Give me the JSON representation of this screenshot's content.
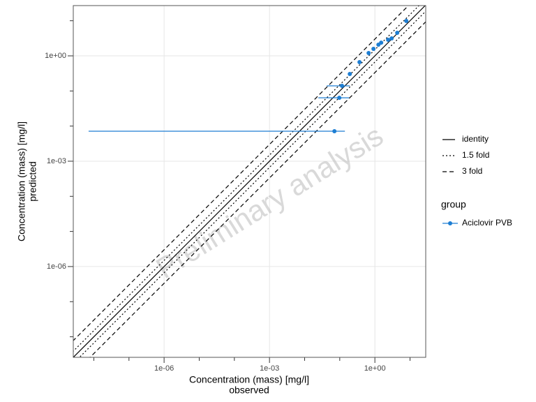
{
  "chart_data": {
    "type": "scatter",
    "x_label": "Concentration (mass) [mg/l]",
    "x_sublabel": "observed",
    "y_label": "Concentration (mass) [mg/l]",
    "y_sublabel": "predicted",
    "watermark": "Preliminary analysis",
    "log_x": true,
    "log_y": true,
    "grid": true,
    "xlim": [
      2.6e-09,
      28
    ],
    "ylim": [
      2.6e-09,
      27
    ],
    "xticks": [
      {
        "value": 1e-06,
        "label": "1e-06"
      },
      {
        "value": 0.001,
        "label": "1e-03"
      },
      {
        "value": 1,
        "label": "1e+00"
      }
    ],
    "yticks": [
      {
        "value": 1e-06,
        "label": "1e-06"
      },
      {
        "value": 0.001,
        "label": "1e-03"
      },
      {
        "value": 1,
        "label": "1e+00"
      }
    ],
    "xminorticks": [
      1e-08,
      1e-07,
      1e-05,
      0.0001,
      0.01,
      0.1,
      10
    ],
    "yminorticks": [
      1e-08,
      1e-07,
      1e-05,
      0.0001,
      0.01,
      0.1,
      10
    ],
    "reference_lines": [
      {
        "name": "identity",
        "fold": 1,
        "dash": "none"
      },
      {
        "name": "1.5 fold",
        "fold": 1.5,
        "dash": "2,3"
      },
      {
        "name": "3 fold",
        "fold": 3,
        "dash": "6,4"
      }
    ],
    "legend_title": "group",
    "series": [
      {
        "name": "Aciclovir PVB",
        "color": "#1d7ed3",
        "x": [
          0.0705,
          0.097,
          0.116,
          0.193,
          0.365,
          0.663,
          0.912,
          1.26,
          1.51,
          2.38,
          3.0,
          4.32,
          7.84
        ],
        "values": [
          0.00715,
          0.064,
          0.14,
          0.304,
          0.663,
          1.2,
          1.58,
          2.08,
          2.38,
          2.86,
          3.14,
          4.53,
          9.85
        ],
        "x_min": [
          7.1e-09,
          0.0246,
          0.0426,
          null,
          null,
          null,
          null,
          null,
          null,
          null,
          null,
          null,
          null
        ],
        "x_max": [
          0.14,
          0.184,
          0.193,
          null,
          null,
          null,
          null,
          null,
          null,
          null,
          null,
          null,
          null
        ]
      }
    ]
  }
}
